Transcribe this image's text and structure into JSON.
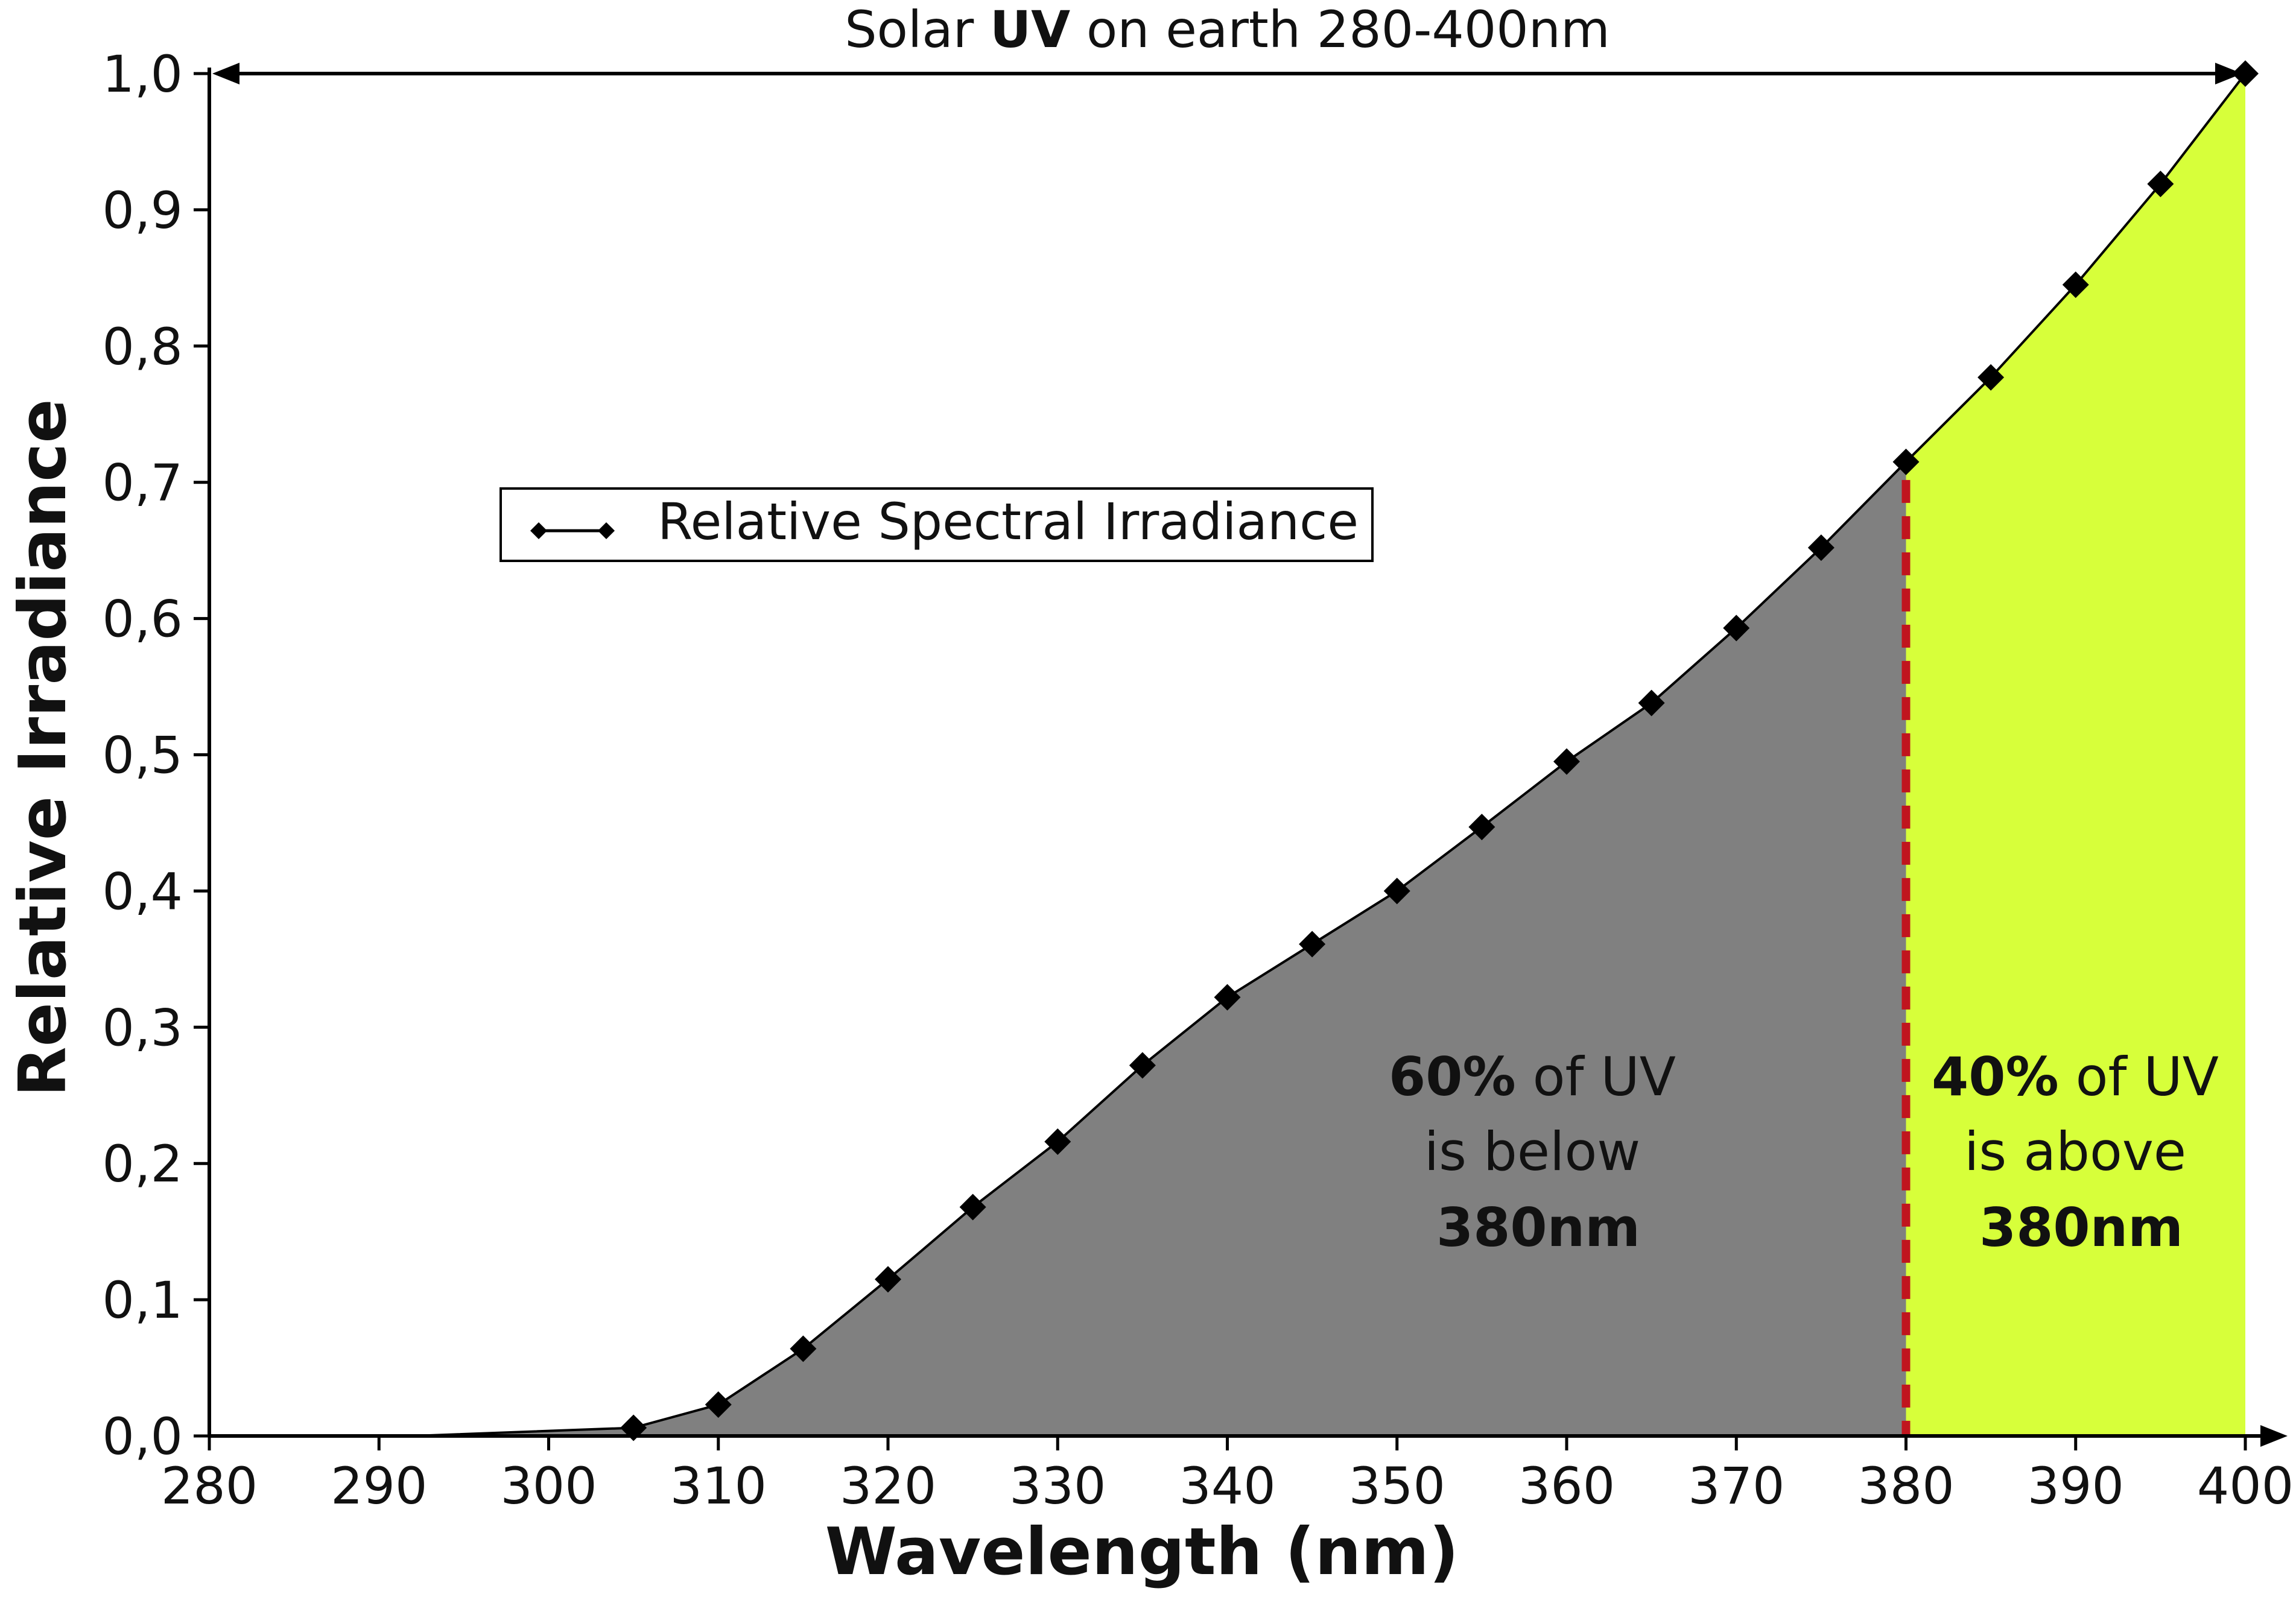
{
  "chart_data": {
    "type": "area",
    "xlabel": "Wavelength (nm)",
    "ylabel": "Relative Irradiance",
    "xlim": [
      280,
      400
    ],
    "ylim": [
      0,
      1.0
    ],
    "x_ticks": [
      "280",
      "290",
      "300",
      "310",
      "320",
      "330",
      "340",
      "350",
      "360",
      "370",
      "380",
      "390",
      "400"
    ],
    "y_ticks": [
      "0,0",
      "0,1",
      "0,2",
      "0,3",
      "0,4",
      "0,5",
      "0,6",
      "0,7",
      "0,8",
      "0,9",
      "1,0"
    ],
    "grid": false,
    "legend": {
      "position": "upper-left",
      "entries": [
        "Relative Spectral Irradiance"
      ]
    },
    "series": [
      {
        "name": "Relative Spectral Irradiance",
        "marker": "diamond",
        "x": [
          280,
          292,
          305,
          310,
          315,
          320,
          325,
          330,
          335,
          340,
          345,
          350,
          355,
          360,
          365,
          370,
          375,
          380,
          385,
          390,
          395,
          400
        ],
        "y": [
          0.0,
          0.0,
          0.006,
          0.023,
          0.064,
          0.115,
          0.168,
          0.216,
          0.272,
          0.322,
          0.361,
          0.4,
          0.447,
          0.495,
          0.538,
          0.593,
          0.652,
          0.715,
          0.777,
          0.845,
          0.919,
          1.0
        ],
        "marker_x": [
          305,
          310,
          315,
          320,
          325,
          330,
          335,
          340,
          345,
          350,
          355,
          360,
          365,
          370,
          375,
          380,
          385,
          390,
          395,
          400
        ]
      }
    ],
    "threshold_x": 380,
    "range_banner": {
      "prefix": "Solar ",
      "bold": "UV",
      "suffix": " on earth 280-400nm",
      "from": 280,
      "to": 400
    },
    "annotations": [
      {
        "bold": "60%",
        "rest": " of UV",
        "line2": "is below",
        "line3": "380nm"
      },
      {
        "bold": "40%",
        "rest": " of UV",
        "line2": "is above",
        "line3": "380nm"
      }
    ],
    "colors": {
      "below_fill": "#808080",
      "above_fill": "#d7ff3a",
      "threshold": "#c0151e",
      "line": "#000000"
    }
  }
}
